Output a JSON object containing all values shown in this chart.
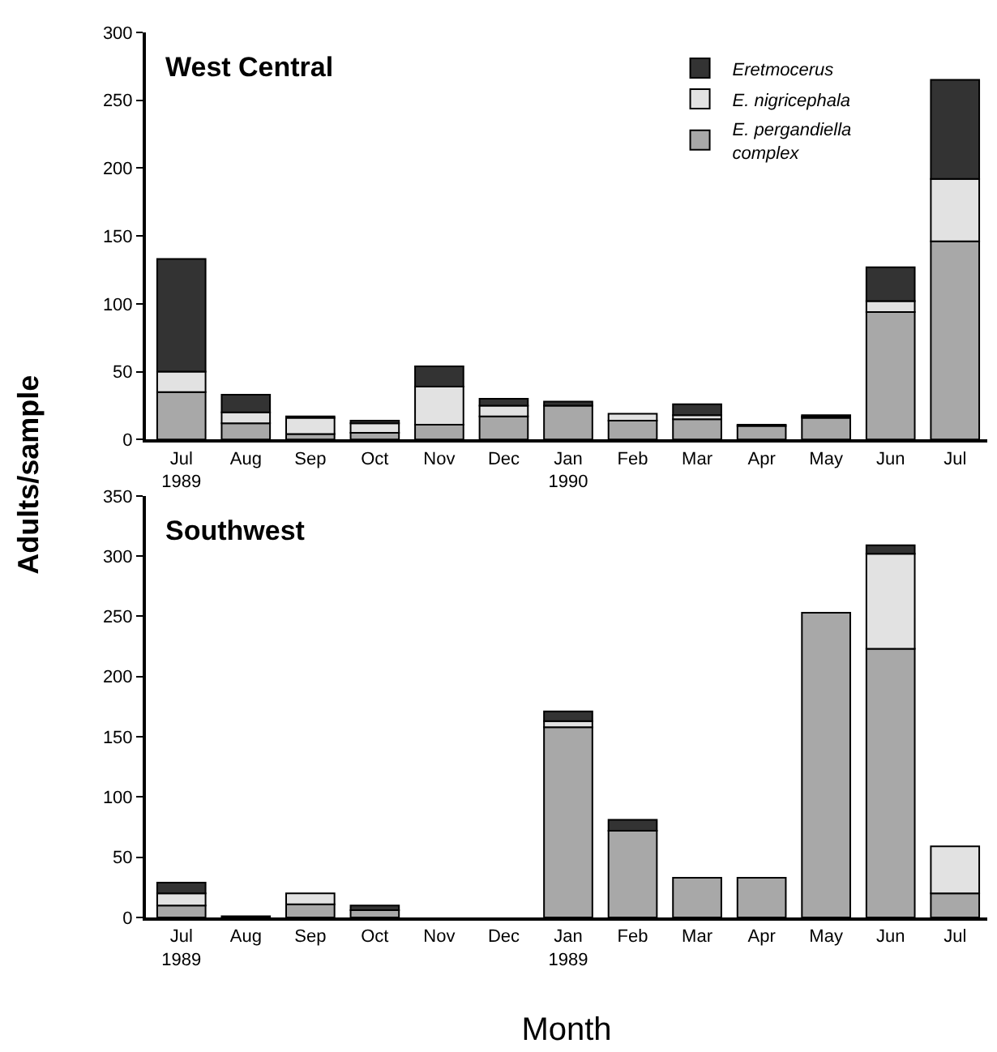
{
  "chart_data": [
    {
      "type": "bar",
      "stacked": true,
      "title": "West Central",
      "ylabel": "Adults/sample",
      "legend": "top right",
      "categories": [
        "Jul\n1989",
        "Aug",
        "Sep",
        "Oct",
        "Nov",
        "Dec",
        "Jan\n1990",
        "Feb",
        "Mar",
        "Apr",
        "May",
        "Jun",
        "Jul"
      ],
      "ylim": [
        0,
        300
      ],
      "yticks": [
        0,
        50,
        100,
        150,
        200,
        250,
        300
      ],
      "series": [
        {
          "name": "E. pergandiella\ncomplex",
          "color": "#a8a8a8",
          "values": [
            35,
            12,
            4,
            5,
            11,
            17,
            25,
            14,
            15,
            10,
            16,
            94,
            146
          ]
        },
        {
          "name": "E. nigricephala",
          "color": "#e2e2e2",
          "values": [
            15,
            8,
            12,
            7,
            28,
            8,
            0,
            5,
            3,
            0,
            1,
            8,
            46
          ]
        },
        {
          "name": "Eretmocerus",
          "color": "#333333",
          "values": [
            83,
            13,
            1,
            2,
            15,
            5,
            3,
            0,
            8,
            1,
            1,
            25,
            73
          ]
        }
      ]
    },
    {
      "type": "bar",
      "stacked": true,
      "title": "Southwest",
      "xlabel": "Month",
      "categories": [
        "Jul\n1989",
        "Aug",
        "Sep",
        "Oct",
        "Nov",
        "Dec",
        "Jan\n1989",
        "Feb",
        "Mar",
        "Apr",
        "May",
        "Jun",
        "Jul"
      ],
      "ylim": [
        0,
        350
      ],
      "yticks": [
        0,
        50,
        100,
        150,
        200,
        250,
        300,
        350
      ],
      "series": [
        {
          "color": "#a8a8a8",
          "values": [
            10,
            1,
            11,
            6,
            0,
            0,
            158,
            72,
            33,
            33,
            253,
            223,
            20
          ]
        },
        {
          "color": "#e2e2e2",
          "values": [
            10,
            0,
            9,
            0,
            0,
            0,
            5,
            0,
            0,
            0,
            0,
            79,
            39
          ]
        },
        {
          "color": "#333333",
          "values": [
            9,
            0,
            0,
            4,
            0,
            0,
            8,
            9,
            0,
            0,
            0,
            7,
            0
          ]
        }
      ]
    }
  ]
}
